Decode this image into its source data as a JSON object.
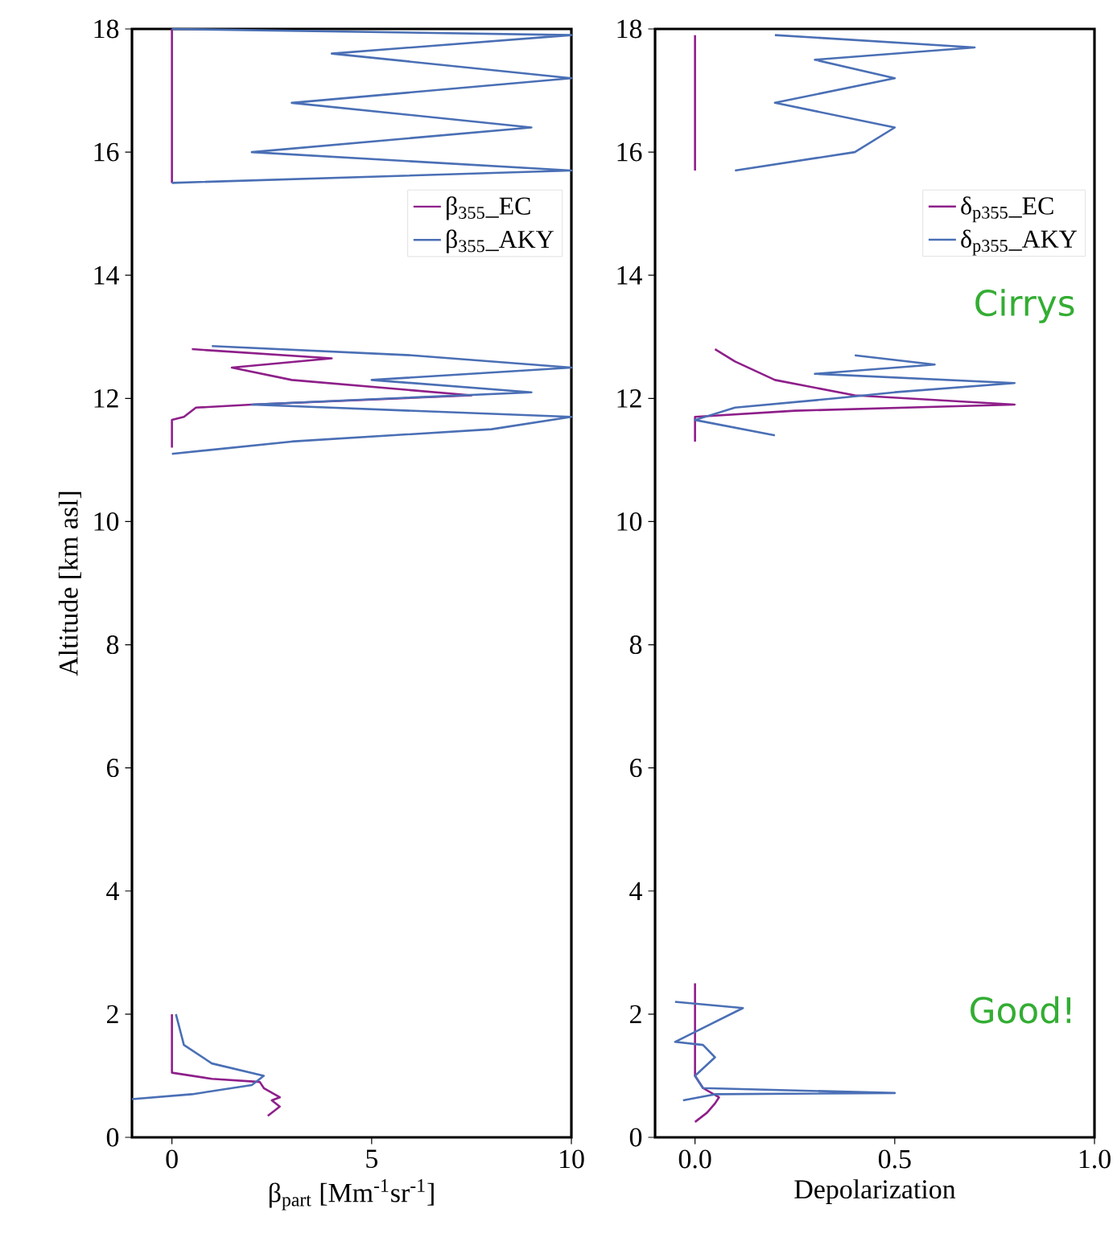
{
  "chart_data": [
    {
      "type": "line",
      "xlabel": "β$_{part}$ [Mm$^{-1}$sr$^{-1}$]",
      "ylabel": "Altitude [km asl]",
      "xlim": [
        -1,
        10
      ],
      "ylim": [
        0,
        18
      ],
      "xticks": [
        0,
        5,
        10
      ],
      "yticks": [
        0,
        2,
        4,
        6,
        8,
        10,
        12,
        14,
        16,
        18
      ],
      "legend": "right",
      "series": [
        {
          "name": "β$_{355}$_EC",
          "color": "#8e1f8a",
          "x": [
            2.4,
            2.7,
            2.5,
            2.7,
            2.3,
            2.2,
            1.0,
            0.0,
            0.0,
            null,
            0,
            0,
            0.3,
            0.6,
            2.0,
            7.5,
            3.0,
            1.5,
            4.0,
            0.5,
            null,
            0,
            0
          ],
          "values": [
            0.35,
            0.5,
            0.6,
            0.65,
            0.8,
            0.9,
            0.95,
            1.05,
            2.0,
            null,
            11.2,
            11.65,
            11.7,
            11.85,
            11.9,
            12.05,
            12.3,
            12.5,
            12.65,
            12.8,
            null,
            15.5,
            18
          ]
        },
        {
          "name": "β$_{355}$_AKY",
          "color": "#4a6fb5",
          "x": [
            -1,
            0.5,
            2.0,
            2.3,
            1.0,
            0.3,
            0.1,
            null,
            0,
            3,
            8,
            10,
            2,
            9,
            5,
            10,
            6,
            1,
            null,
            0,
            10,
            2,
            9,
            3,
            10,
            4,
            10,
            0
          ],
          "values": [
            0.62,
            0.7,
            0.85,
            1.0,
            1.2,
            1.5,
            2.0,
            null,
            11.1,
            11.3,
            11.5,
            11.7,
            11.9,
            12.1,
            12.3,
            12.5,
            12.7,
            12.85,
            null,
            15.5,
            15.7,
            16.0,
            16.4,
            16.8,
            17.2,
            17.6,
            17.9,
            18
          ]
        }
      ]
    },
    {
      "type": "line",
      "xlabel": "Depolarization",
      "xlim": [
        -0.1,
        1.0
      ],
      "ylim": [
        0,
        18
      ],
      "xticks": [
        {
          "value": 0,
          "label": "0.0"
        },
        0.5,
        {
          "value": 1,
          "label": "1.0"
        }
      ],
      "yticks": [
        0,
        2,
        4,
        6,
        8,
        10,
        12,
        14,
        16,
        18
      ],
      "legend": "right",
      "annotations": [
        "Cirrys",
        "Good!"
      ],
      "series": [
        {
          "name": "δ$_{p355}$_EC",
          "color": "#8e1f8a",
          "x": [
            0.0,
            0.03,
            0.05,
            0.06,
            0.02,
            0.0,
            0.0,
            null,
            0,
            0,
            0.25,
            0.8,
            0.4,
            0.2,
            0.1,
            0.05,
            null,
            0,
            0
          ],
          "values": [
            0.25,
            0.4,
            0.55,
            0.65,
            0.8,
            1.0,
            2.5,
            null,
            11.3,
            11.7,
            11.8,
            11.9,
            12.05,
            12.3,
            12.6,
            12.8,
            null,
            15.7,
            17.9
          ]
        },
        {
          "name": "δ$_{p355}$_AKY",
          "color": "#4a6fb5",
          "x": [
            -0.03,
            0.05,
            0.5,
            0.02,
            0.0,
            0.05,
            0.02,
            -0.05,
            0.12,
            -0.05,
            null,
            0.2,
            0.0,
            0.1,
            0.35,
            0.5,
            0.8,
            0.3,
            0.6,
            0.4,
            null,
            0.1,
            0.4,
            0.5,
            0.2,
            0.5,
            0.3,
            0.7,
            0.2
          ],
          "values": [
            0.6,
            0.7,
            0.72,
            0.8,
            1.0,
            1.3,
            1.5,
            1.55,
            2.1,
            2.2,
            null,
            11.4,
            11.65,
            11.85,
            12.0,
            12.1,
            12.25,
            12.4,
            12.55,
            12.7,
            null,
            15.7,
            16.0,
            16.4,
            16.8,
            17.2,
            17.5,
            17.7,
            17.9
          ]
        }
      ]
    }
  ]
}
